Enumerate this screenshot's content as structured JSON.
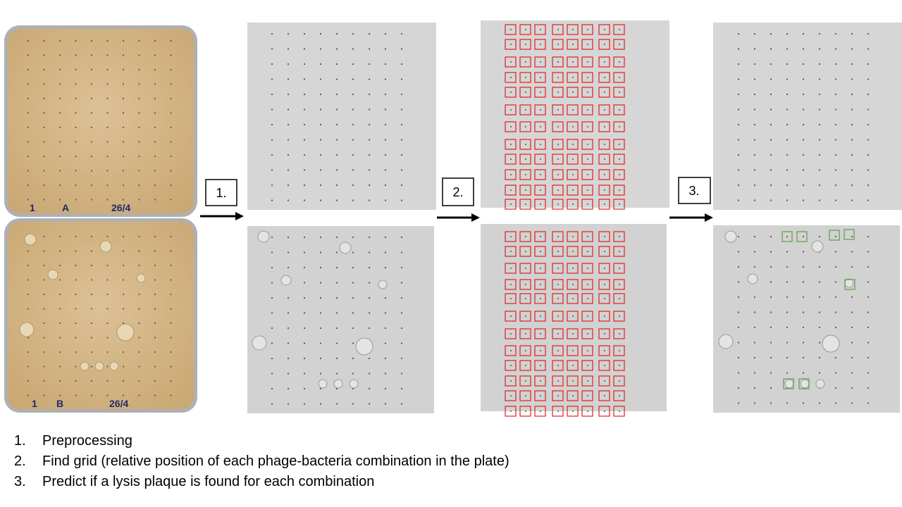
{
  "arrow_labels": [
    "1.",
    "2.",
    "3."
  ],
  "plate_labels": {
    "top": [
      "1",
      "A",
      "26/4"
    ],
    "bottom": [
      "1",
      "B",
      "26/4"
    ]
  },
  "steps": [
    {
      "num": "1.",
      "text": "Preprocessing"
    },
    {
      "num": "2.",
      "text": "Find grid (relative position of each phage-bacteria combination in the plate)"
    },
    {
      "num": "3.",
      "text": "Predict if a lysis plaque is found for each combination"
    }
  ],
  "colors": {
    "plate_agar": "#d6b98a",
    "plate_rim": "#9c9c9c",
    "gray_plate": "#d3d3d3",
    "grid_box": "#e02020",
    "hit_box": "#5b9e3c",
    "arrow": "#000000"
  }
}
